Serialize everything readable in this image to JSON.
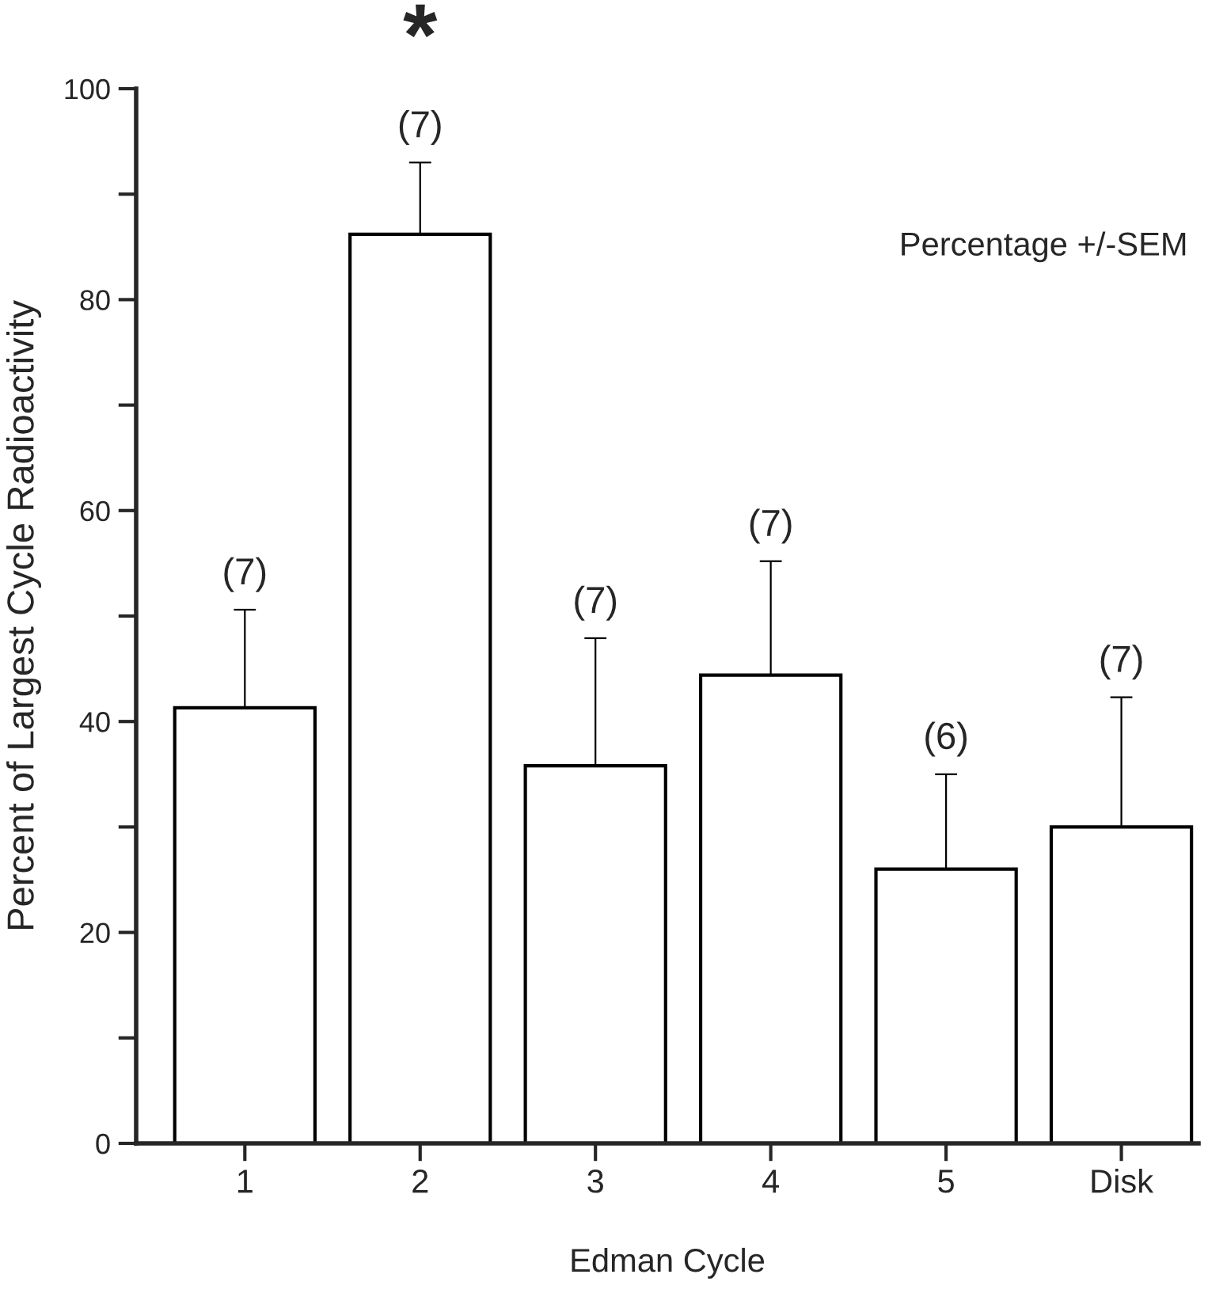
{
  "chart_data": {
    "type": "bar",
    "xlabel": "Edman Cycle",
    "ylabel": "Percent of Largest Cycle Radioactivity",
    "categories": [
      "1",
      "2",
      "3",
      "4",
      "5",
      "Disk"
    ],
    "series": [
      {
        "color": "#ffffff",
        "values": [
          41.3,
          86.2,
          35.8,
          44.4,
          26.0,
          30.0
        ],
        "errors": [
          [
            41.3,
            50.6
          ],
          [
            86.2,
            93.0
          ],
          [
            35.8,
            47.9
          ],
          [
            44.4,
            55.2
          ],
          [
            26.0,
            35.0
          ],
          [
            30.0,
            42.3
          ]
        ]
      }
    ],
    "ylim": [
      0,
      100
    ],
    "yticks": [
      0,
      {
        "value": 10,
        "label": null
      },
      20,
      {
        "value": 30,
        "label": null
      },
      40,
      {
        "value": 50,
        "label": null
      },
      60,
      {
        "value": 70,
        "label": null
      },
      80,
      {
        "value": 90,
        "label": null
      },
      100
    ],
    "grid": false,
    "legend": false,
    "annotations": [
      "Percentage +/-SEM",
      "*",
      "(7)",
      "(7)",
      "(7)",
      "(7)",
      "(6)",
      "(7)"
    ]
  }
}
